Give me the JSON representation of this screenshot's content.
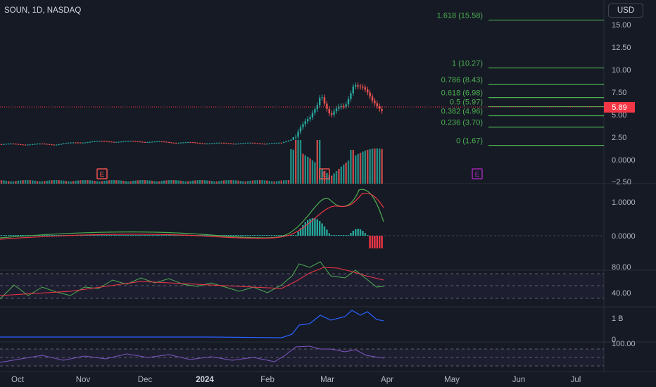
{
  "header": {
    "symbol": "SOUN, 1D, NASDAQ",
    "currency": "USD",
    "last_price": "5.89"
  },
  "colors": {
    "background": "#161a25",
    "up": "#26a69a",
    "down": "#ef5350",
    "fib": "#4caf50",
    "macd": "#4caf50",
    "signal": "#f23645",
    "obv": "#2962ff",
    "stoch": "#7e57c2"
  },
  "fibonacci": [
    {
      "label": "1.618 (15.58)",
      "value": 15.58
    },
    {
      "label": "1 (10.27)",
      "value": 10.27
    },
    {
      "label": "0.786 (8.43)",
      "value": 8.43
    },
    {
      "label": "0.618 (6.98)",
      "value": 6.98
    },
    {
      "label": "0.5 (5.97)",
      "value": 5.97
    },
    {
      "label": "0.382 (4.96)",
      "value": 4.96
    },
    {
      "label": "0.236 (3.70)",
      "value": 3.7
    },
    {
      "label": "0 (1.67)",
      "value": 1.67
    }
  ],
  "price_axis": [
    "15.00",
    "12.50",
    "10.00",
    "7.50",
    "5.00",
    "2.50",
    "0.0000",
    "−2.50"
  ],
  "macd_axis": [
    "1.0000",
    "0.0000"
  ],
  "rsi_axis": [
    "80.00",
    "40.00"
  ],
  "obv_axis": [
    "1 B",
    "0"
  ],
  "stoch_axis": [
    "100.00"
  ],
  "time_axis": [
    "Oct",
    "Nov",
    "Dec",
    "2024",
    "Feb",
    "Mar",
    "Apr",
    "May",
    "Jun",
    "Jul"
  ],
  "earnings_markers": [
    "E",
    "E",
    "E"
  ],
  "chart_data": {
    "type": "line",
    "x": [
      "Oct",
      "Nov",
      "Dec",
      "2024",
      "Feb",
      "Mar",
      "Apr"
    ],
    "series": [
      {
        "values": [
          1.9,
          1.9,
          2.1,
          2.0,
          1.9,
          7.5,
          5.9
        ]
      }
    ],
    "ylim": [
      -2.5,
      15.58
    ]
  }
}
